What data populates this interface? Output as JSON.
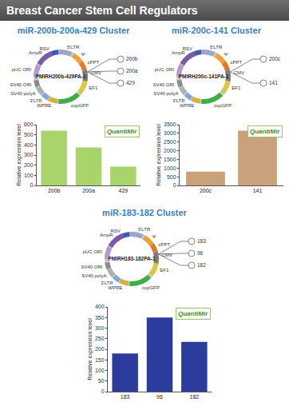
{
  "header": {
    "title": "Breast Cancer Stem Cell Regulators"
  },
  "chart_data": [
    {
      "type": "bar",
      "title": "miR-200b-200a-429 Cluster",
      "categories": [
        "200b",
        "200a",
        "429"
      ],
      "values": [
        540,
        375,
        185
      ],
      "color": "#a8d46b",
      "ylabel": "Relative expression level",
      "ylim": [
        0,
        600
      ],
      "yticks": [
        0,
        100,
        200,
        300,
        400,
        500,
        600
      ],
      "grid": false,
      "annotations": [
        "QuantiMir"
      ]
    },
    {
      "type": "bar",
      "title": "miR-200c-141 Cluster",
      "categories": [
        "200c",
        "141"
      ],
      "values": [
        800,
        3150
      ],
      "color": "#c9a27c",
      "ylabel": "Relative expression level",
      "ylim": [
        0,
        3500
      ],
      "yticks": [
        0,
        500,
        1000,
        1500,
        2000,
        2500,
        3000,
        3500
      ],
      "grid": false,
      "annotations": [
        "QuantiMir"
      ]
    },
    {
      "type": "bar",
      "title": "miR-183-182 Cluster",
      "categories": [
        "183",
        "96",
        "182"
      ],
      "values": [
        180,
        350,
        235
      ],
      "color": "#2b3c9c",
      "ylabel": "Relative expression level",
      "ylim": [
        0,
        400
      ],
      "yticks": [
        0,
        50,
        100,
        150,
        200,
        250,
        300,
        350,
        400
      ],
      "grid": false,
      "annotations": [
        "QuantiMir"
      ]
    }
  ],
  "diagrams": [
    {
      "name": "PMIRH200b-429PA-1",
      "labels": [
        "RSV",
        "5'LTR",
        "Ψ",
        "cPPT",
        "CMV",
        "EF1",
        "copGFP",
        "WPRE",
        "3'LTR",
        "SV40 polyA",
        "SV40 ORI",
        "pUC ORI",
        "AmpR"
      ],
      "hairpins": [
        "200b",
        "200a",
        "429"
      ]
    },
    {
      "name": "PMIRH200c-141PA-1",
      "labels": [
        "RSV",
        "5'LTR",
        "Ψ",
        "cPPT",
        "CMV",
        "EF1",
        "copGFP",
        "WPRE",
        "3'LTR",
        "SV40 polyA",
        "SV40 ORI",
        "pUC ORI",
        "AmpR"
      ],
      "hairpins": [
        "200c",
        "141"
      ]
    },
    {
      "name": "PMIRH183-182PA-1",
      "labels": [
        "RSV",
        "5'LTR",
        "Ψ",
        "cPPT",
        "CMV",
        "EF1",
        "copGFP",
        "WPRE",
        "3'LTR",
        "SV40 polyA",
        "SV40 ORI",
        "pUC ORI",
        "AmpR"
      ],
      "hairpins": [
        "183",
        "96",
        "182"
      ]
    }
  ]
}
